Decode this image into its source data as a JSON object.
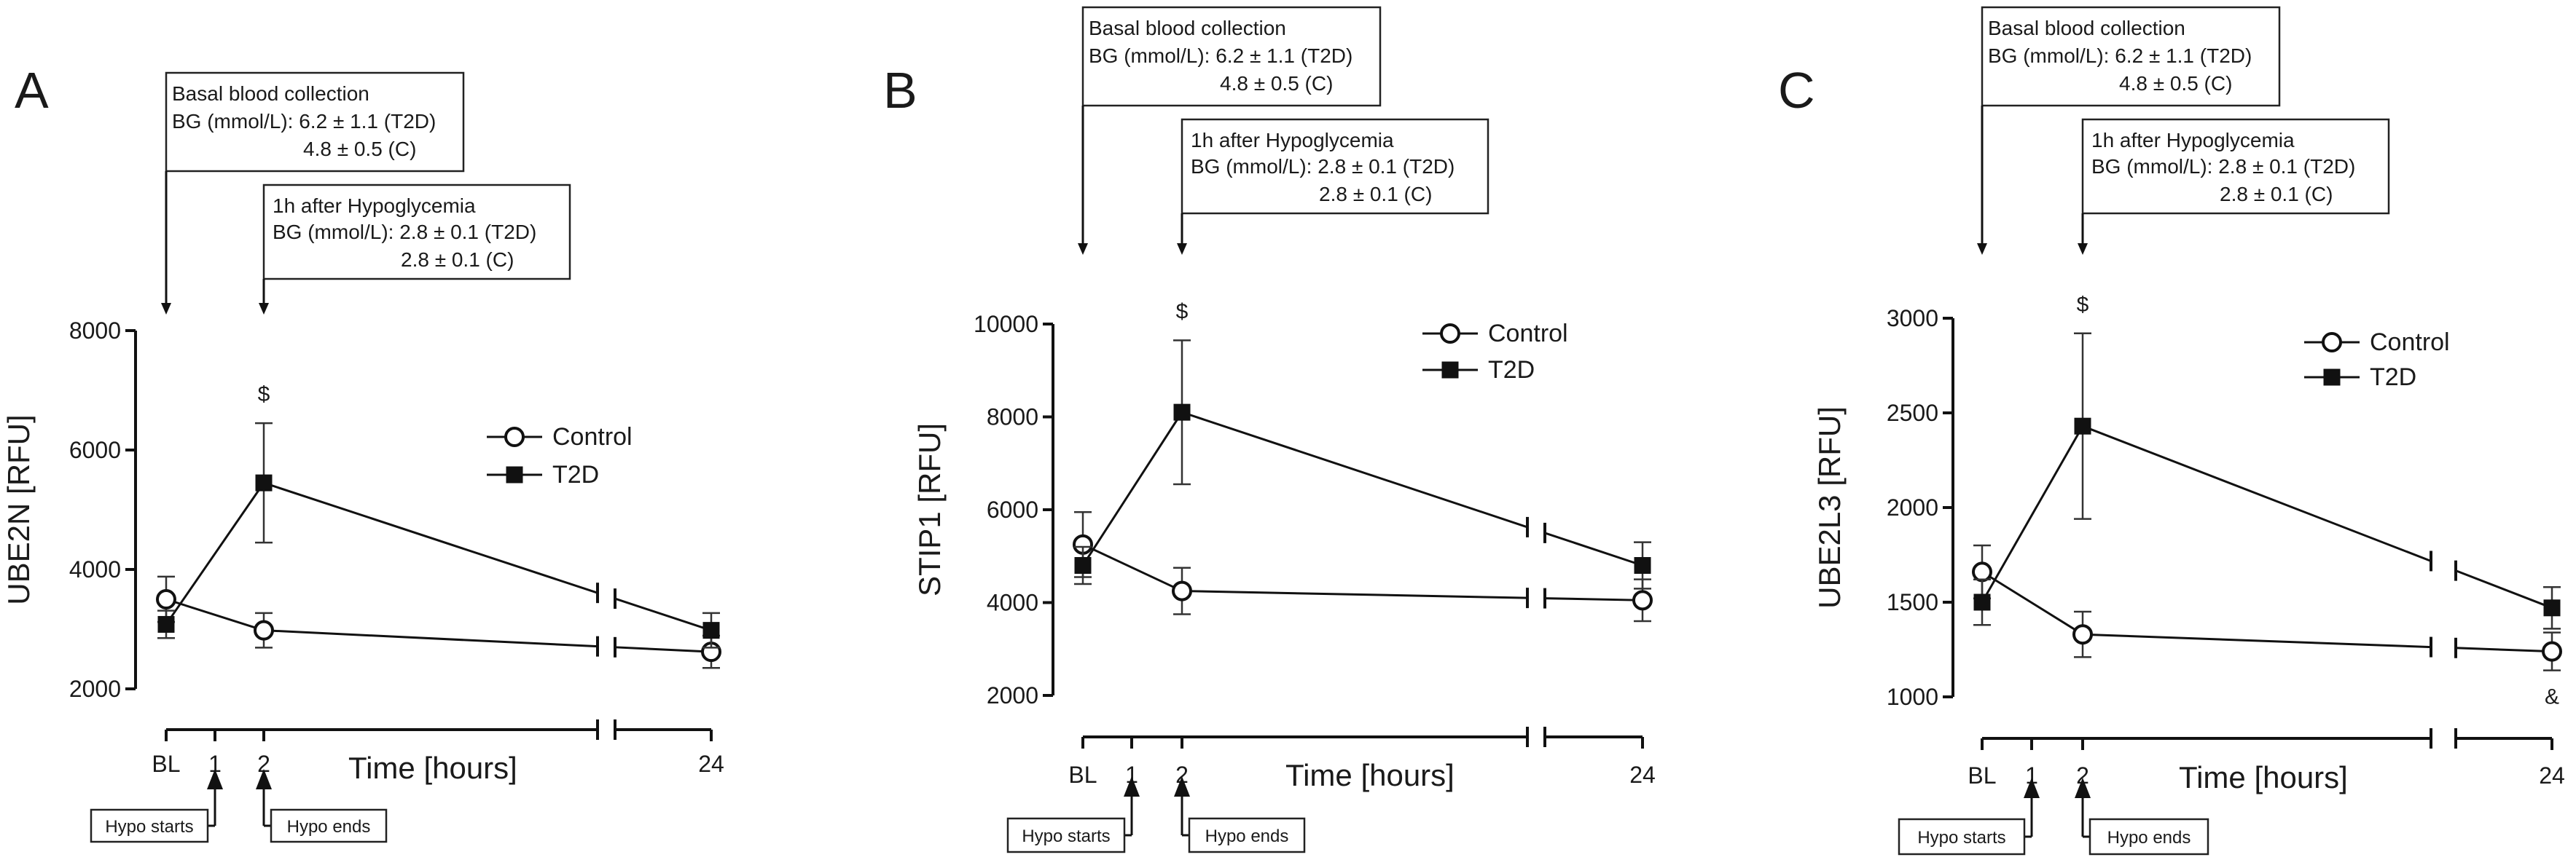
{
  "chart_data": [
    {
      "type": "line",
      "panel_label": "A",
      "ylabel": "UBE2N [RFU]",
      "xlabel": "Time [hours]",
      "ylim": [
        2000,
        8000
      ],
      "yticks": [
        2000,
        4000,
        6000,
        8000
      ],
      "x_tick_labels": [
        "BL",
        "1",
        "2",
        "24"
      ],
      "categories": [
        "BL",
        "2",
        "24"
      ],
      "series": [
        {
          "name": "Control",
          "marker": "open-circle",
          "values": [
            3500,
            2980,
            2620
          ],
          "errors": [
            380,
            290,
            270
          ]
        },
        {
          "name": "T2D",
          "marker": "filled-square",
          "values": [
            3080,
            5450,
            2980
          ],
          "errors": [
            230,
            1000,
            290
          ]
        }
      ],
      "significance_marks": [
        {
          "at": "2",
          "text": "$"
        }
      ],
      "annotations": {
        "basal": {
          "title": "Basal blood collection",
          "line1": "BG (mmol/L): 6.2 ± 1.1 (T2D)",
          "line2": "4.8 ± 0.5 (C)"
        },
        "hypo": {
          "title": "1h after Hypoglycemia",
          "line1": "BG (mmol/L): 2.8 ± 0.1 (T2D)",
          "line2": "2.8 ± 0.1 (C)"
        }
      },
      "hypo_labels": {
        "start": "Hypo starts",
        "end": "Hypo ends"
      }
    },
    {
      "type": "line",
      "panel_label": "B",
      "ylabel": "STIP1 [RFU]",
      "xlabel": "Time [hours]",
      "ylim": [
        2000,
        10000
      ],
      "yticks": [
        2000,
        4000,
        6000,
        8000,
        10000
      ],
      "x_tick_labels": [
        "BL",
        "1",
        "2",
        "24"
      ],
      "categories": [
        "BL",
        "2",
        "24"
      ],
      "series": [
        {
          "name": "Control",
          "marker": "open-circle",
          "values": [
            5250,
            4250,
            4050
          ],
          "errors": [
            700,
            500,
            450
          ]
        },
        {
          "name": "T2D",
          "marker": "filled-square",
          "values": [
            4800,
            8100,
            4800
          ],
          "errors": [
            400,
            1550,
            500
          ]
        }
      ],
      "significance_marks": [
        {
          "at": "2",
          "text": "$"
        }
      ],
      "annotations": {
        "basal": {
          "title": "Basal blood collection",
          "line1": "BG (mmol/L): 6.2 ± 1.1 (T2D)",
          "line2": "4.8 ± 0.5 (C)"
        },
        "hypo": {
          "title": "1h after Hypoglycemia",
          "line1": "BG (mmol/L): 2.8 ± 0.1 (T2D)",
          "line2": "2.8 ± 0.1 (C)"
        }
      },
      "hypo_labels": {
        "start": "Hypo starts",
        "end": "Hypo ends"
      }
    },
    {
      "type": "line",
      "panel_label": "C",
      "ylabel": "UBE2L3 [RFU]",
      "xlabel": "Time [hours]",
      "ylim": [
        1000,
        3000
      ],
      "yticks": [
        1000,
        1500,
        2000,
        2500,
        3000
      ],
      "x_tick_labels": [
        "BL",
        "1",
        "2",
        "24"
      ],
      "categories": [
        "BL",
        "2",
        "24"
      ],
      "series": [
        {
          "name": "Control",
          "marker": "open-circle",
          "values": [
            1660,
            1330,
            1240
          ],
          "errors": [
            140,
            120,
            100
          ]
        },
        {
          "name": "T2D",
          "marker": "filled-square",
          "values": [
            1500,
            2430,
            1470
          ],
          "errors": [
            120,
            490,
            110
          ]
        }
      ],
      "significance_marks": [
        {
          "at": "2",
          "text": "$"
        },
        {
          "at": "24",
          "text": "&"
        }
      ],
      "annotations": {
        "basal": {
          "title": "Basal blood collection",
          "line1": "BG (mmol/L): 6.2 ± 1.1 (T2D)",
          "line2": "4.8 ± 0.5 (C)"
        },
        "hypo": {
          "title": "1h after Hypoglycemia",
          "line1": "BG (mmol/L): 2.8 ± 0.1 (T2D)",
          "line2": "2.8 ± 0.1 (C)"
        }
      },
      "hypo_labels": {
        "start": "Hypo starts",
        "end": "Hypo ends"
      }
    }
  ]
}
